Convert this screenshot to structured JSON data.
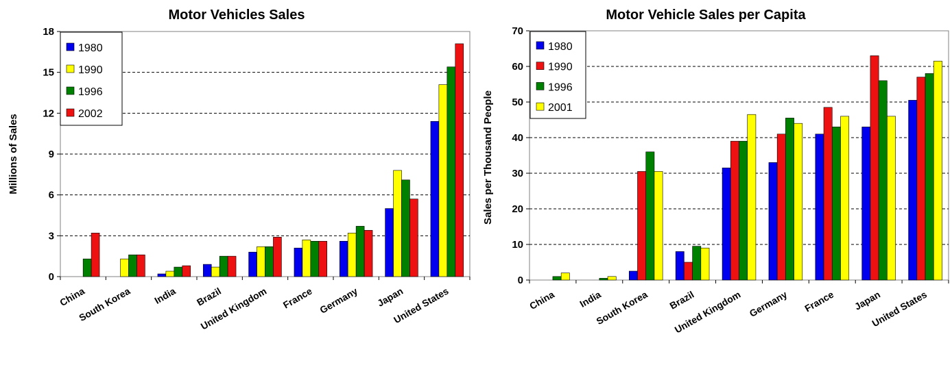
{
  "chart_data": [
    {
      "type": "bar",
      "title": "Motor Vehicles Sales",
      "xlabel": "",
      "ylabel": "Millions of Sales",
      "ylim": [
        0,
        18
      ],
      "yticks": [
        "0",
        "3",
        "6",
        "9",
        "12",
        "15",
        "18"
      ],
      "grid": "horizontal dashed",
      "legend_position": "top-left",
      "categories": [
        "China",
        "South Korea",
        "India",
        "Brazil",
        "United Kingdom",
        "France",
        "Germany",
        "Japan",
        "United States"
      ],
      "series": [
        {
          "name": "1980",
          "color": "#0000ee",
          "values": [
            0,
            0,
            0.2,
            0.9,
            1.8,
            2.1,
            2.6,
            5.0,
            11.4
          ]
        },
        {
          "name": "1990",
          "color": "#ffff00",
          "values": [
            0,
            1.3,
            0.4,
            0.7,
            2.2,
            2.7,
            3.2,
            7.8,
            14.1
          ]
        },
        {
          "name": "1996",
          "color": "#008000",
          "values": [
            1.3,
            1.6,
            0.7,
            1.5,
            2.2,
            2.6,
            3.7,
            7.1,
            15.4
          ]
        },
        {
          "name": "2002",
          "color": "#ee1111",
          "values": [
            3.2,
            1.6,
            0.8,
            1.5,
            2.9,
            2.6,
            3.4,
            5.7,
            17.1
          ]
        }
      ]
    },
    {
      "type": "bar",
      "title": "Motor Vehicle Sales per Capita",
      "xlabel": "",
      "ylabel": "Sales per Thousand People",
      "ylim": [
        0,
        70
      ],
      "yticks": [
        "0",
        "10",
        "20",
        "30",
        "40",
        "50",
        "60",
        "70"
      ],
      "grid": "horizontal dashed",
      "legend_position": "top-left",
      "categories": [
        "China",
        "India",
        "South Korea",
        "Brazil",
        "United Kingdom",
        "Germany",
        "France",
        "Japan",
        "United States"
      ],
      "series": [
        {
          "name": "1980",
          "color": "#0000ee",
          "values": [
            0,
            0,
            2.5,
            8,
            31.5,
            33,
            41,
            43,
            50.5
          ]
        },
        {
          "name": "1990",
          "color": "#ee1111",
          "values": [
            0,
            0,
            30.5,
            5,
            39,
            41,
            48.5,
            63,
            57
          ]
        },
        {
          "name": "1996",
          "color": "#008000",
          "values": [
            1,
            0.5,
            36,
            9.5,
            39,
            45.5,
            43,
            56,
            58
          ]
        },
        {
          "name": "2001",
          "color": "#ffff00",
          "values": [
            2,
            1,
            30.5,
            9,
            46.5,
            44,
            46,
            46,
            61.5
          ]
        }
      ]
    }
  ]
}
